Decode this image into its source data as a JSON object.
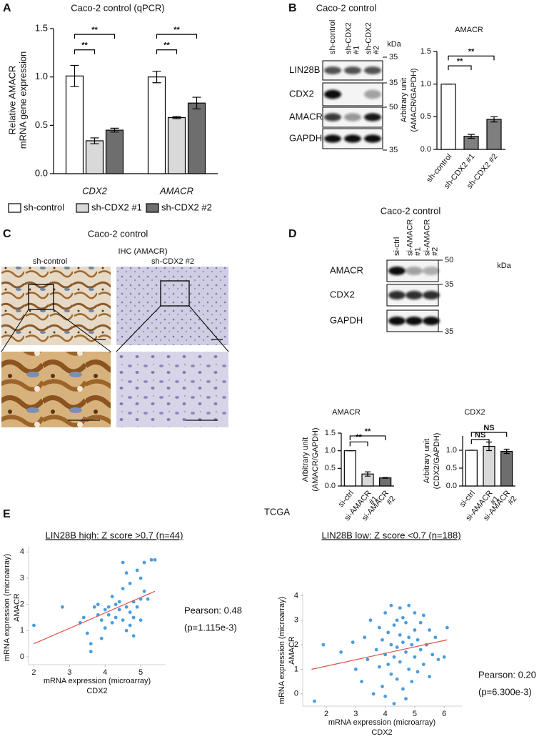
{
  "panels": [
    "A",
    "B",
    "C",
    "D",
    "E"
  ],
  "blots": [
    {
      "title": "Caco-2 control",
      "lanes": [
        [
          "sh-control"
        ],
        [
          "sh-CDX2",
          "#1"
        ],
        [
          "sh-CDX2",
          "#2"
        ]
      ],
      "rows": [
        "LIN28B",
        "CDX2",
        "AMACR",
        "GAPDH"
      ],
      "unit": "kDa",
      "markers": [
        "35",
        "35",
        "50",
        "35"
      ]
    },
    {
      "title": "Caco-2 control",
      "lanes": [
        [
          "si-ctrl"
        ],
        [
          "si-AMACR",
          "#1"
        ],
        [
          "si-AMACR",
          "#2"
        ]
      ],
      "rows": [
        "AMACR",
        "CDX2",
        "GAPDH"
      ],
      "unit": "kDa",
      "markers": [
        "50",
        "35",
        "35"
      ]
    }
  ],
  "ihc": {
    "title": "Caco-2 control",
    "subtitle": "IHC (AMACR)",
    "columns": [
      "sh-control",
      "sh-CDX2 #2"
    ]
  },
  "tcga": {
    "title": "TCGA"
  },
  "chart_data": [
    {
      "type": "bar",
      "title": "Caco-2 control (qPCR)",
      "ylabel": [
        "Relative AMACR",
        "mRNA gene expression"
      ],
      "categories": [
        "CDX2",
        "AMACR"
      ],
      "series": [
        {
          "name": "sh-control",
          "color": "#ffffff",
          "values": [
            1.01,
            1.0
          ],
          "errors": [
            0.11,
            0.06
          ]
        },
        {
          "name": "sh-CDX2 #1",
          "color": "#d9d9d9",
          "values": [
            0.34,
            0.58
          ],
          "errors": [
            0.03,
            0.01
          ]
        },
        {
          "name": "sh-CDX2 #2",
          "color": "#6e6e6e",
          "values": [
            0.45,
            0.73
          ],
          "errors": [
            0.02,
            0.06
          ]
        }
      ],
      "ylim": [
        0,
        1.5
      ],
      "yticks": [
        {
          "value": 0,
          "label": "0.0"
        },
        0.5,
        {
          "value": 1,
          "label": "1.0"
        },
        1.5
      ],
      "significance": [
        "**",
        "**",
        "**",
        "**"
      ]
    },
    {
      "type": "bar",
      "title": "AMACR",
      "ylabel": [
        "Arbitrary unit",
        "(AMACR/GAPDH)"
      ],
      "categories": [
        "sh-control",
        "sh-CDX2 #1",
        "sh-CDX2 #2"
      ],
      "values": [
        1.0,
        0.2,
        0.46
      ],
      "errors": [
        0,
        0.03,
        0.04
      ],
      "colors": [
        "#ffffff",
        "#7f7f7f",
        "#7f7f7f"
      ],
      "ylim": [
        0,
        1.5
      ],
      "yticks": [
        {
          "value": 0,
          "label": "0.0"
        },
        0.5,
        {
          "value": 1,
          "label": "1.0"
        },
        1.5
      ],
      "significance": [
        "**",
        "**"
      ]
    },
    {
      "type": "bar",
      "title": "AMACR",
      "ylabel": [
        "Arbitrary unit",
        "(AMACR/GAPDH)"
      ],
      "categories": [
        "si-ctrl",
        [
          "si-AMACR",
          "#1"
        ],
        [
          "si-AMACR",
          "#2"
        ]
      ],
      "values": [
        1.0,
        0.34,
        0.23
      ],
      "errors": [
        0,
        0.06,
        0.01
      ],
      "colors": [
        "#ffffff",
        "#d9d9d9",
        "#6e6e6e"
      ],
      "ylim": [
        0,
        1.5
      ],
      "yticks": [
        {
          "value": 0,
          "label": "0.0"
        },
        0.5,
        {
          "value": 1,
          "label": "1.0"
        },
        1.5
      ],
      "significance": [
        "**",
        "**"
      ]
    },
    {
      "type": "bar",
      "title": "CDX2",
      "ylabel": [
        "Arbitrary unit",
        "(CDX2/GAPDH)"
      ],
      "categories": [
        "si-ctrl",
        [
          "si-AMACR",
          "#1"
        ],
        [
          "si-AMACR",
          "#2"
        ]
      ],
      "values": [
        1.0,
        1.11,
        0.97
      ],
      "errors": [
        0,
        0.12,
        0.06
      ],
      "colors": [
        "#ffffff",
        "#d9d9d9",
        "#6e6e6e"
      ],
      "ylim": [
        0,
        1.4
      ],
      "yticks": [
        {
          "value": 0,
          "label": "0.0"
        },
        0.5,
        {
          "value": 1,
          "label": "1.0"
        }
      ],
      "significance": [
        "NS",
        "NS"
      ]
    },
    {
      "type": "scatter",
      "title": "LIN28B high: Z score >0.7 (n=44)",
      "xlabel": [
        "mRNA expression (microarray)",
        "CDX2"
      ],
      "ylabel": [
        "mRNA expression (microarray)",
        "AMACR"
      ],
      "x": [
        2.0,
        2.8,
        3.3,
        3.4,
        3.5,
        3.6,
        3.7,
        3.8,
        3.8,
        3.9,
        3.9,
        4.0,
        4.0,
        4.1,
        4.1,
        4.2,
        4.2,
        4.3,
        4.3,
        4.4,
        4.4,
        4.5,
        4.5,
        4.5,
        4.6,
        4.6,
        4.6,
        4.7,
        4.7,
        4.7,
        4.8,
        4.8,
        4.8,
        4.9,
        4.9,
        5.0,
        5.0,
        5.0,
        5.1,
        5.1,
        5.2,
        5.3,
        5.4,
        3.6
      ],
      "y": [
        1.2,
        1.9,
        1.3,
        1.5,
        0.9,
        0.2,
        1.9,
        1.6,
        2.0,
        1.4,
        0.7,
        1.8,
        1.1,
        1.9,
        1.6,
        2.3,
        1.3,
        2.0,
        1.5,
        2.1,
        1.8,
        3.6,
        2.6,
        1.4,
        1.9,
        3.2,
        1.0,
        1.2,
        2.8,
        1.7,
        2.1,
        1.5,
        0.8,
        1.9,
        3.3,
        3.0,
        1.4,
        2.2,
        2.5,
        3.6,
        2.2,
        3.7,
        3.7,
        0.5
      ],
      "color": "#4a9de0",
      "trendline": {
        "color": "#d9534f",
        "x": [
          2.0,
          5.4
        ],
        "y": [
          0.5,
          2.5
        ]
      },
      "xlim": [
        1.85,
        5.7
      ],
      "xticks": [
        2,
        3,
        4,
        5
      ],
      "ylim": [
        -0.3,
        4.2
      ],
      "yticks": [
        0,
        1,
        2,
        3,
        4
      ],
      "annotation": [
        "Pearson: 0.48",
        "(p=1.115e-3)"
      ]
    },
    {
      "type": "scatter",
      "title": "LIN28B low: Z score <0.7 (n=188)",
      "xlabel": [
        "mRNA expression (microarray)",
        "CDX2"
      ],
      "ylabel": [
        "mRNA expression (microarray)",
        "AMACR"
      ],
      "x": [
        1.6,
        1.9,
        2.5,
        2.9,
        3.0,
        3.2,
        3.3,
        3.4,
        3.5,
        3.6,
        3.7,
        3.8,
        3.8,
        3.9,
        3.9,
        4.0,
        4.0,
        4.0,
        4.1,
        4.1,
        4.2,
        4.2,
        4.2,
        4.3,
        4.3,
        4.3,
        4.4,
        4.4,
        4.4,
        4.5,
        4.5,
        4.5,
        4.6,
        4.6,
        4.6,
        4.7,
        4.7,
        4.7,
        4.8,
        4.8,
        4.8,
        4.9,
        4.9,
        5.0,
        5.0,
        5.0,
        5.1,
        5.1,
        5.2,
        5.2,
        5.3,
        5.3,
        5.4,
        5.5,
        5.5,
        5.6,
        5.7,
        5.8,
        6.0,
        6.1
      ],
      "y": [
        -0.3,
        2.0,
        1.7,
        2.1,
        1.0,
        0.5,
        2.3,
        1.4,
        3.0,
        0.0,
        1.8,
        2.7,
        1.1,
        0.3,
        2.2,
        3.3,
        1.6,
        -0.1,
        2.5,
        1.2,
        3.6,
        2.0,
        0.8,
        2.8,
        1.5,
        -0.4,
        3.0,
        1.9,
        0.6,
        2.4,
        1.3,
        3.5,
        2.1,
        0.2,
        3.1,
        1.7,
        2.9,
        -0.2,
        2.3,
        1.0,
        3.6,
        2.0,
        0.5,
        2.6,
        1.5,
        3.3,
        2.2,
        0.9,
        1.8,
        2.9,
        1.2,
        3.2,
        2.0,
        0.7,
        2.6,
        1.6,
        2.3,
        1.4,
        1.5,
        2.7
      ],
      "color": "#4a9de0",
      "trendline": {
        "color": "#d9534f",
        "x": [
          1.5,
          6.1
        ],
        "y": [
          1.0,
          2.2
        ]
      },
      "xlim": [
        1.2,
        6.6
      ],
      "xticks": [
        2,
        3,
        4,
        5,
        6
      ],
      "ylim": [
        -0.5,
        4.1
      ],
      "yticks": [
        0,
        1,
        2,
        3,
        4
      ],
      "annotation": [
        "Pearson: 0.20",
        "(p=6.300e-3)"
      ]
    }
  ]
}
